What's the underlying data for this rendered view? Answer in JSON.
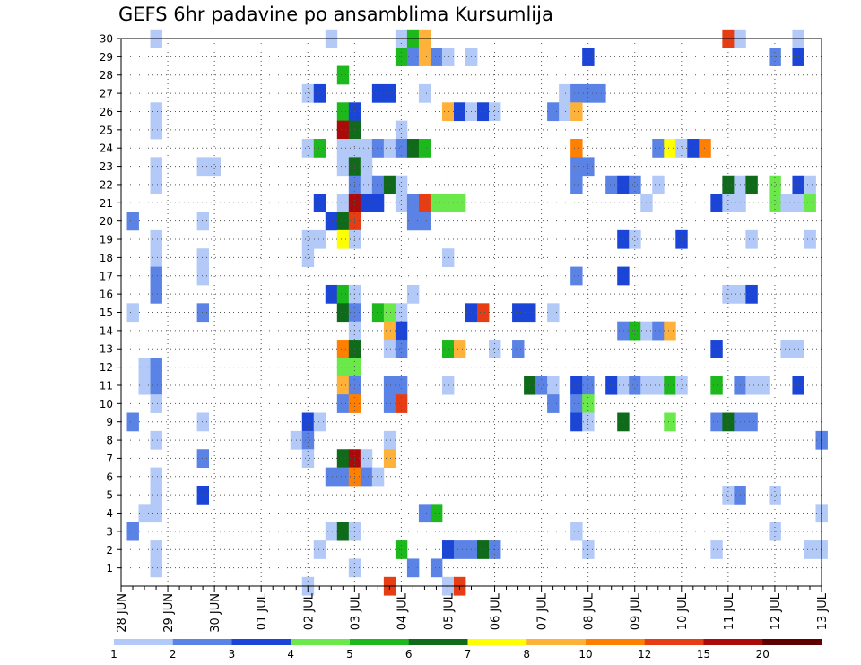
{
  "chart_data": {
    "type": "heatmap",
    "title": "GEFS 6hr padavine po ansamblima Kursumlija",
    "xlabel": "",
    "ylabel": "",
    "x_ticks": [
      "28 JUN",
      "29 JUN",
      "30 JUN",
      "01 JUL",
      "02 JUL",
      "03 JUL",
      "04 JUL",
      "05 JUL",
      "06 JUL",
      "07 JUL",
      "08 JUL",
      "09 JUL",
      "10 JUL",
      "11 JUL",
      "12 JUL",
      "13 JUL"
    ],
    "y_ticks": [
      1,
      2,
      3,
      4,
      5,
      6,
      7,
      8,
      9,
      10,
      11,
      12,
      13,
      14,
      15,
      16,
      17,
      18,
      19,
      20,
      21,
      22,
      23,
      24,
      25,
      26,
      27,
      28,
      29,
      30
    ],
    "x_range_steps": [
      0,
      60
    ],
    "y_range": [
      0,
      30
    ],
    "grid": true,
    "colorbar": {
      "labels": [
        "1",
        "2",
        "3",
        "4",
        "5",
        "6",
        "7",
        "8",
        "10",
        "12",
        "15",
        "20"
      ],
      "colors": [
        "#b3c9f7",
        "#5b83e6",
        "#1a45d6",
        "#6be84a",
        "#1cb81c",
        "#0f6b1a",
        "#ffff00",
        "#ffb23a",
        "#ff7f00",
        "#e63d14",
        "#aa0a0a",
        "#5c0000"
      ]
    },
    "cells": [
      [
        30,
        3,
        1
      ],
      [
        30,
        18,
        1
      ],
      [
        30,
        24,
        1
      ],
      [
        30,
        25,
        5
      ],
      [
        30,
        26,
        8
      ],
      [
        30,
        52,
        10
      ],
      [
        30,
        53,
        1
      ],
      [
        30,
        58,
        1
      ],
      [
        29,
        24,
        5
      ],
      [
        29,
        25,
        2
      ],
      [
        29,
        26,
        8
      ],
      [
        29,
        27,
        2
      ],
      [
        29,
        28,
        1
      ],
      [
        29,
        30,
        1
      ],
      [
        29,
        40,
        3
      ],
      [
        29,
        56,
        2
      ],
      [
        29,
        58,
        3
      ],
      [
        28,
        19,
        5
      ],
      [
        27,
        16,
        1
      ],
      [
        27,
        17,
        3
      ],
      [
        27,
        22,
        3
      ],
      [
        27,
        23,
        3
      ],
      [
        27,
        26,
        1
      ],
      [
        27,
        38,
        1
      ],
      [
        27,
        39,
        2
      ],
      [
        27,
        40,
        2
      ],
      [
        27,
        41,
        2
      ],
      [
        26,
        3,
        1
      ],
      [
        26,
        19,
        5
      ],
      [
        26,
        20,
        3
      ],
      [
        26,
        28,
        8
      ],
      [
        26,
        29,
        3
      ],
      [
        26,
        30,
        1
      ],
      [
        26,
        31,
        3
      ],
      [
        26,
        32,
        1
      ],
      [
        26,
        37,
        2
      ],
      [
        26,
        38,
        1
      ],
      [
        26,
        39,
        8
      ],
      [
        25,
        3,
        1
      ],
      [
        25,
        19,
        11
      ],
      [
        25,
        20,
        6
      ],
      [
        25,
        24,
        1
      ],
      [
        24,
        16,
        1
      ],
      [
        24,
        17,
        5
      ],
      [
        24,
        19,
        1
      ],
      [
        24,
        20,
        1
      ],
      [
        24,
        21,
        1
      ],
      [
        24,
        22,
        2
      ],
      [
        24,
        23,
        1
      ],
      [
        24,
        24,
        2
      ],
      [
        24,
        25,
        6
      ],
      [
        24,
        26,
        5
      ],
      [
        24,
        39,
        9
      ],
      [
        24,
        46,
        2
      ],
      [
        24,
        47,
        7
      ],
      [
        24,
        48,
        1
      ],
      [
        24,
        49,
        3
      ],
      [
        24,
        50,
        9
      ],
      [
        23,
        3,
        1
      ],
      [
        23,
        7,
        1
      ],
      [
        23,
        8,
        1
      ],
      [
        23,
        19,
        1
      ],
      [
        23,
        20,
        6
      ],
      [
        23,
        21,
        1
      ],
      [
        23,
        39,
        2
      ],
      [
        23,
        40,
        2
      ],
      [
        22,
        3,
        1
      ],
      [
        22,
        20,
        2
      ],
      [
        22,
        21,
        1
      ],
      [
        22,
        22,
        2
      ],
      [
        22,
        23,
        6
      ],
      [
        22,
        24,
        1
      ],
      [
        22,
        39,
        2
      ],
      [
        22,
        42,
        2
      ],
      [
        22,
        43,
        3
      ],
      [
        22,
        44,
        2
      ],
      [
        22,
        46,
        1
      ],
      [
        22,
        52,
        6
      ],
      [
        22,
        53,
        1
      ],
      [
        22,
        54,
        6
      ],
      [
        22,
        56,
        4
      ],
      [
        22,
        58,
        3
      ],
      [
        22,
        59,
        1
      ],
      [
        21,
        17,
        3
      ],
      [
        21,
        19,
        1
      ],
      [
        21,
        20,
        11
      ],
      [
        21,
        21,
        3
      ],
      [
        21,
        22,
        3
      ],
      [
        21,
        24,
        1
      ],
      [
        21,
        25,
        2
      ],
      [
        21,
        26,
        10
      ],
      [
        21,
        27,
        4
      ],
      [
        21,
        28,
        4
      ],
      [
        21,
        29,
        4
      ],
      [
        21,
        45,
        1
      ],
      [
        21,
        51,
        3
      ],
      [
        21,
        52,
        1
      ],
      [
        21,
        53,
        1
      ],
      [
        21,
        56,
        4
      ],
      [
        21,
        57,
        1
      ],
      [
        21,
        58,
        1
      ],
      [
        21,
        59,
        4
      ],
      [
        20,
        1,
        2
      ],
      [
        20,
        7,
        1
      ],
      [
        20,
        18,
        3
      ],
      [
        20,
        19,
        6
      ],
      [
        20,
        20,
        10
      ],
      [
        20,
        25,
        2
      ],
      [
        20,
        26,
        2
      ],
      [
        19,
        3,
        1
      ],
      [
        19,
        16,
        1
      ],
      [
        19,
        17,
        1
      ],
      [
        19,
        19,
        7
      ],
      [
        19,
        20,
        1
      ],
      [
        19,
        43,
        3
      ],
      [
        19,
        44,
        1
      ],
      [
        19,
        48,
        3
      ],
      [
        19,
        54,
        1
      ],
      [
        19,
        59,
        1
      ],
      [
        18,
        3,
        1
      ],
      [
        18,
        7,
        1
      ],
      [
        18,
        16,
        1
      ],
      [
        18,
        28,
        1
      ],
      [
        17,
        3,
        2
      ],
      [
        17,
        7,
        1
      ],
      [
        17,
        39,
        2
      ],
      [
        17,
        43,
        3
      ],
      [
        16,
        3,
        2
      ],
      [
        16,
        18,
        3
      ],
      [
        16,
        19,
        5
      ],
      [
        16,
        20,
        1
      ],
      [
        16,
        25,
        1
      ],
      [
        16,
        52,
        1
      ],
      [
        16,
        53,
        1
      ],
      [
        16,
        54,
        3
      ],
      [
        15,
        1,
        1
      ],
      [
        15,
        7,
        2
      ],
      [
        15,
        19,
        6
      ],
      [
        15,
        20,
        2
      ],
      [
        15,
        22,
        5
      ],
      [
        15,
        23,
        4
      ],
      [
        15,
        24,
        1
      ],
      [
        15,
        30,
        3
      ],
      [
        15,
        31,
        10
      ],
      [
        15,
        34,
        3
      ],
      [
        15,
        35,
        3
      ],
      [
        15,
        37,
        1
      ],
      [
        14,
        20,
        1
      ],
      [
        14,
        23,
        8
      ],
      [
        14,
        24,
        3
      ],
      [
        14,
        43,
        2
      ],
      [
        14,
        44,
        5
      ],
      [
        14,
        45,
        1
      ],
      [
        14,
        46,
        2
      ],
      [
        14,
        47,
        8
      ],
      [
        13,
        19,
        9
      ],
      [
        13,
        20,
        6
      ],
      [
        13,
        23,
        1
      ],
      [
        13,
        24,
        2
      ],
      [
        13,
        28,
        5
      ],
      [
        13,
        29,
        8
      ],
      [
        13,
        32,
        1
      ],
      [
        13,
        34,
        2
      ],
      [
        13,
        51,
        3
      ],
      [
        13,
        57,
        1
      ],
      [
        13,
        58,
        1
      ],
      [
        12,
        2,
        1
      ],
      [
        12,
        3,
        2
      ],
      [
        12,
        19,
        4
      ],
      [
        12,
        20,
        4
      ],
      [
        11,
        2,
        1
      ],
      [
        11,
        3,
        2
      ],
      [
        11,
        19,
        8
      ],
      [
        11,
        20,
        2
      ],
      [
        11,
        23,
        2
      ],
      [
        11,
        24,
        2
      ],
      [
        11,
        28,
        1
      ],
      [
        11,
        35,
        6
      ],
      [
        11,
        36,
        2
      ],
      [
        11,
        37,
        1
      ],
      [
        11,
        39,
        3
      ],
      [
        11,
        40,
        2
      ],
      [
        11,
        42,
        3
      ],
      [
        11,
        43,
        1
      ],
      [
        11,
        44,
        2
      ],
      [
        11,
        45,
        1
      ],
      [
        11,
        46,
        1
      ],
      [
        11,
        47,
        5
      ],
      [
        11,
        48,
        1
      ],
      [
        11,
        51,
        5
      ],
      [
        11,
        53,
        2
      ],
      [
        11,
        54,
        1
      ],
      [
        11,
        55,
        1
      ],
      [
        11,
        58,
        3
      ],
      [
        10,
        3,
        1
      ],
      [
        10,
        19,
        2
      ],
      [
        10,
        20,
        9
      ],
      [
        10,
        23,
        2
      ],
      [
        10,
        24,
        10
      ],
      [
        10,
        37,
        2
      ],
      [
        10,
        39,
        2
      ],
      [
        10,
        40,
        4
      ],
      [
        9,
        1,
        2
      ],
      [
        9,
        7,
        1
      ],
      [
        9,
        16,
        3
      ],
      [
        9,
        17,
        1
      ],
      [
        9,
        39,
        3
      ],
      [
        9,
        40,
        1
      ],
      [
        9,
        43,
        6
      ],
      [
        9,
        47,
        4
      ],
      [
        9,
        51,
        2
      ],
      [
        9,
        52,
        6
      ],
      [
        9,
        53,
        2
      ],
      [
        9,
        54,
        2
      ],
      [
        8,
        3,
        1
      ],
      [
        8,
        15,
        1
      ],
      [
        8,
        16,
        2
      ],
      [
        8,
        23,
        1
      ],
      [
        8,
        60,
        2
      ],
      [
        7,
        7,
        2
      ],
      [
        7,
        16,
        1
      ],
      [
        7,
        19,
        6
      ],
      [
        7,
        20,
        11
      ],
      [
        7,
        21,
        1
      ],
      [
        7,
        23,
        8
      ],
      [
        6,
        3,
        1
      ],
      [
        6,
        18,
        2
      ],
      [
        6,
        19,
        2
      ],
      [
        6,
        20,
        9
      ],
      [
        6,
        21,
        2
      ],
      [
        6,
        22,
        1
      ],
      [
        5,
        3,
        1
      ],
      [
        5,
        7,
        3
      ],
      [
        5,
        52,
        1
      ],
      [
        5,
        53,
        2
      ],
      [
        5,
        56,
        1
      ],
      [
        4,
        2,
        1
      ],
      [
        4,
        3,
        1
      ],
      [
        4,
        26,
        2
      ],
      [
        4,
        27,
        5
      ],
      [
        4,
        60,
        1
      ],
      [
        3,
        1,
        2
      ],
      [
        3,
        18,
        1
      ],
      [
        3,
        19,
        6
      ],
      [
        3,
        20,
        1
      ],
      [
        3,
        39,
        1
      ],
      [
        3,
        56,
        1
      ],
      [
        2,
        3,
        1
      ],
      [
        2,
        17,
        1
      ],
      [
        2,
        24,
        5
      ],
      [
        2,
        28,
        3
      ],
      [
        2,
        29,
        2
      ],
      [
        2,
        30,
        2
      ],
      [
        2,
        31,
        6
      ],
      [
        2,
        32,
        2
      ],
      [
        2,
        40,
        1
      ],
      [
        2,
        51,
        1
      ],
      [
        2,
        59,
        1
      ],
      [
        2,
        60,
        1
      ],
      [
        1,
        3,
        1
      ],
      [
        1,
        20,
        1
      ],
      [
        1,
        25,
        2
      ],
      [
        1,
        27,
        2
      ],
      [
        0,
        16,
        1
      ],
      [
        0,
        23,
        10
      ],
      [
        0,
        28,
        1
      ],
      [
        0,
        29,
        10
      ]
    ]
  }
}
